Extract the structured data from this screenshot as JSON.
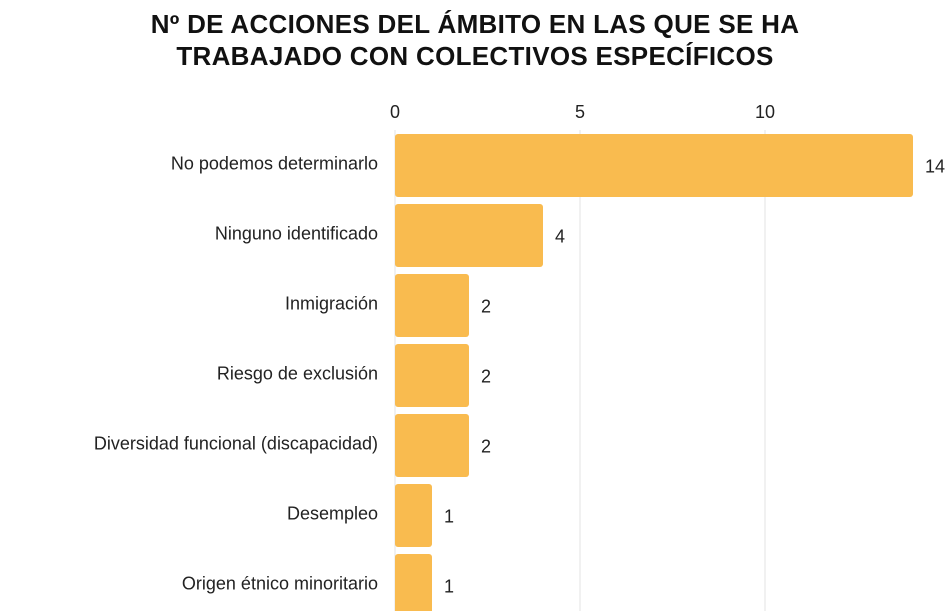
{
  "chart_data": {
    "type": "bar",
    "orientation": "horizontal",
    "title": "Nº DE ACCIONES DEL ÁMBITO EN LAS QUE SE HA TRABAJADO CON COLECTIVOS ESPECÍFICOS",
    "categories": [
      "No podemos determinarlo",
      "Ninguno identificado",
      "Inmigración",
      "Riesgo de exclusión",
      "Diversidad funcional (discapacidad)",
      "Desempleo",
      "Origen étnico minoritario"
    ],
    "values": [
      14,
      4,
      2,
      2,
      2,
      1,
      1
    ],
    "color": "#f9bb4f",
    "xlim": [
      0,
      14
    ],
    "xticks": [
      0,
      5,
      10
    ],
    "grid": true
  }
}
